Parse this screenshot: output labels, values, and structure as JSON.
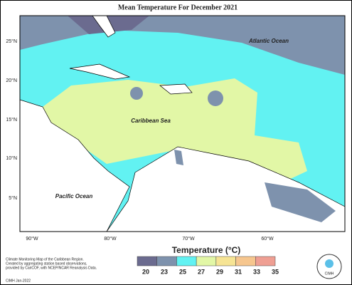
{
  "title": "Mean Temperature For December 2021",
  "map": {
    "lat_labels": [
      "25°N",
      "20°N",
      "15°N",
      "10°N",
      "5°N"
    ],
    "lon_labels": [
      "90°W",
      "80°W",
      "70°W",
      "60°W"
    ],
    "places": [
      "Atlantic Ocean",
      "Caribbean Sea",
      "Pacific Ocean"
    ]
  },
  "legend": {
    "title": "Temperature (°C)",
    "ticks": [
      20,
      23,
      25,
      27,
      29,
      31,
      33,
      35
    ],
    "colors": [
      "#6b6b8f",
      "#7e92ad",
      "#62f2f2",
      "#e2f7a6",
      "#f6e494",
      "#f6c68e",
      "#ef9f93"
    ]
  },
  "credits": [
    "Climate Monitoring Map of the Caribbean Region.",
    "Created by aggregating station based observations,",
    "provided by CariCOF, with NCEP/NCAR Reanalysis Data."
  ],
  "footer": "CIMH Jan-2022",
  "logo": "CIMH"
}
